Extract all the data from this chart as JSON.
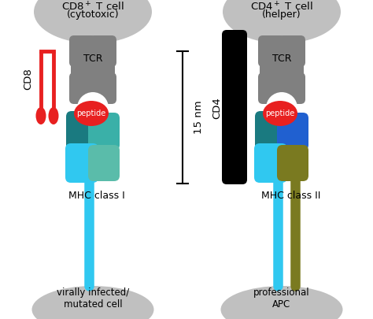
{
  "white": "#ffffff",
  "gray_cell": "#c0c0c0",
  "gray_tcr": "#808080",
  "red": "#e82020",
  "teal_dark": "#1a7a80",
  "cyan_light": "#30c8f0",
  "teal_medium": "#5abcaa",
  "blue_bright": "#2060d0",
  "olive": "#7a7a20",
  "black": "#000000",
  "red_cd8": "#e82020",
  "label_tcr": "TCR",
  "label_peptide": "peptide",
  "label_mhc1": "MHC class I",
  "label_mhc2": "MHC class II",
  "label_cd8": "CD8",
  "label_cd4": "CD4",
  "label_bottom_left": "virally infected/\nmutated cell",
  "label_bottom_right": "professional\nAPC",
  "label_15nm": "15 nm"
}
